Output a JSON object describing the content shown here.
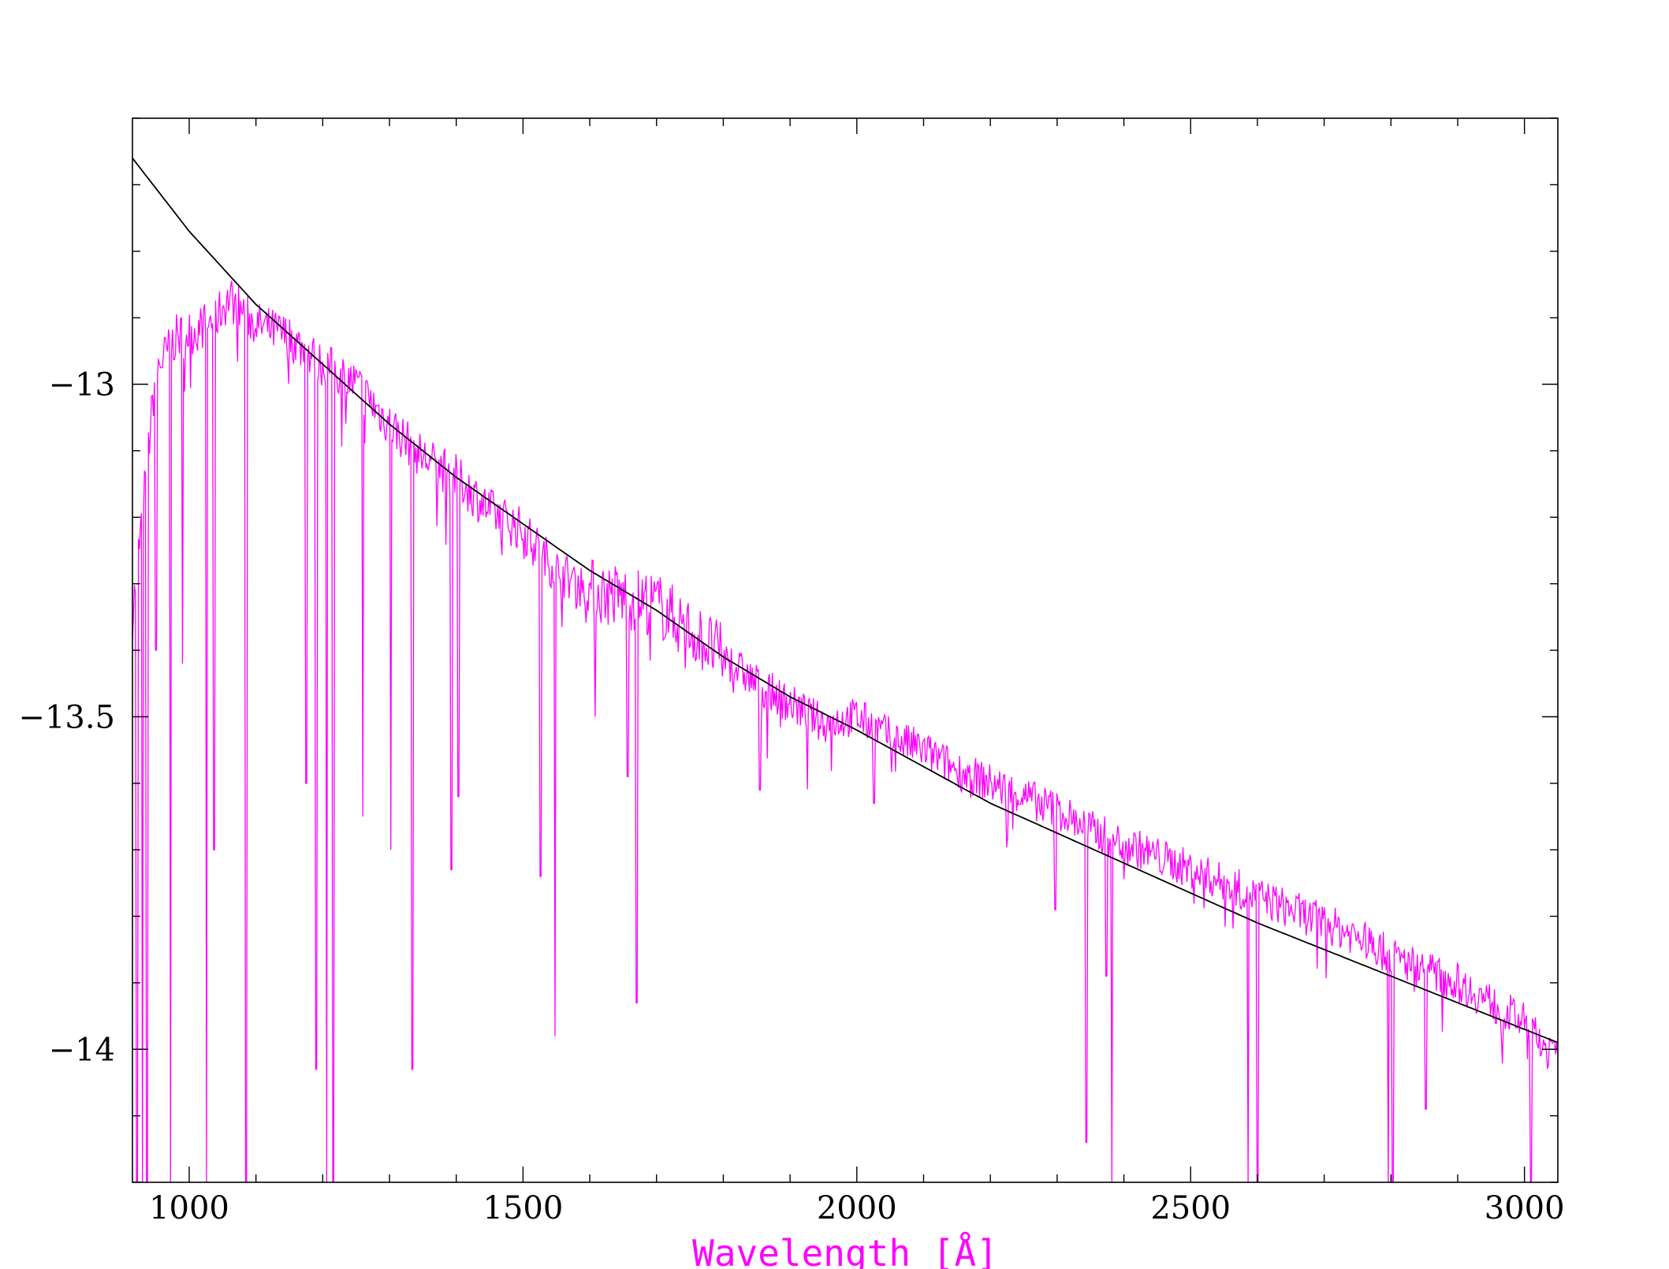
{
  "chart_data": {
    "type": "line",
    "title": "",
    "xlabel": "Wavelength [Å]",
    "ylabel": "",
    "xlim": [
      915,
      3050
    ],
    "ylim": [
      -14.2,
      -12.6
    ],
    "x_ticks": [
      1000,
      1500,
      2000,
      2500,
      3000
    ],
    "x_tick_labels": [
      "1000",
      "1500",
      "2000",
      "2500",
      "3000"
    ],
    "y_ticks": [
      -13,
      -13.5,
      -14
    ],
    "y_tick_labels": [
      "−13",
      "−13.5",
      "−14"
    ],
    "grid": false,
    "legend": "none",
    "colors": {
      "spectrum": "#ff00ff",
      "model": "#000000",
      "xlabel": "#ff00ff",
      "axes": "#000000"
    },
    "series": [
      {
        "role": "model continuum",
        "style": "smooth line",
        "x": [
          915,
          1000,
          1100,
          1200,
          1300,
          1400,
          1500,
          1600,
          1700,
          1800,
          1900,
          2000,
          2200,
          2400,
          2600,
          2800,
          3050
        ],
        "y": [
          -12.66,
          -12.77,
          -12.88,
          -12.97,
          -13.06,
          -13.14,
          -13.21,
          -13.28,
          -13.34,
          -13.41,
          -13.47,
          -13.52,
          -13.63,
          -13.72,
          -13.81,
          -13.89,
          -13.99
        ]
      },
      {
        "role": "observed spectrum",
        "style": "noisy line",
        "x": [
          915,
          950,
          980,
          1010,
          1040,
          1060,
          1100,
          1150,
          1200,
          1250,
          1300,
          1350,
          1400,
          1450,
          1500,
          1550,
          1600,
          1650,
          1700,
          1750,
          1800,
          1850,
          1900,
          1950,
          2000,
          2050,
          2100,
          2150,
          2200,
          2250,
          2300,
          2350,
          2400,
          2450,
          2500,
          2550,
          2600,
          2650,
          2700,
          2750,
          2800,
          2850,
          2900,
          2950,
          3000,
          3050
        ],
        "y": [
          -13.35,
          -12.98,
          -12.93,
          -12.92,
          -12.9,
          -12.87,
          -12.91,
          -12.93,
          -12.97,
          -13.0,
          -13.06,
          -13.11,
          -13.14,
          -13.19,
          -13.22,
          -13.28,
          -13.31,
          -13.32,
          -13.33,
          -13.37,
          -13.41,
          -13.45,
          -13.48,
          -13.51,
          -13.5,
          -13.53,
          -13.55,
          -13.58,
          -13.6,
          -13.62,
          -13.64,
          -13.67,
          -13.69,
          -13.71,
          -13.73,
          -13.75,
          -13.77,
          -13.79,
          -13.81,
          -13.83,
          -13.86,
          -13.88,
          -13.9,
          -13.93,
          -13.96,
          -14.02
        ]
      }
    ],
    "absorption_features": [
      {
        "x": 922,
        "depth_to": -14.2
      },
      {
        "x": 930,
        "depth_to": -14.2
      },
      {
        "x": 937,
        "depth_to": -14.2
      },
      {
        "x": 950,
        "depth_to": -13.4
      },
      {
        "x": 972,
        "depth_to": -14.2
      },
      {
        "x": 990,
        "depth_to": -13.42
      },
      {
        "x": 1026,
        "depth_to": -14.2
      },
      {
        "x": 1037,
        "depth_to": -13.7
      },
      {
        "x": 1085,
        "depth_to": -14.2
      },
      {
        "x": 1175,
        "depth_to": -13.6
      },
      {
        "x": 1190,
        "depth_to": -14.03
      },
      {
        "x": 1206,
        "depth_to": -14.2
      },
      {
        "x": 1216,
        "depth_to": -14.2
      },
      {
        "x": 1260,
        "depth_to": -13.65
      },
      {
        "x": 1302,
        "depth_to": -13.7
      },
      {
        "x": 1334,
        "depth_to": -14.03
      },
      {
        "x": 1393,
        "depth_to": -13.73
      },
      {
        "x": 1403,
        "depth_to": -13.62
      },
      {
        "x": 1526,
        "depth_to": -13.74
      },
      {
        "x": 1548,
        "depth_to": -13.98
      },
      {
        "x": 1608,
        "depth_to": -13.5
      },
      {
        "x": 1657,
        "depth_to": -13.59
      },
      {
        "x": 1670,
        "depth_to": -13.93
      },
      {
        "x": 1855,
        "depth_to": -13.61
      },
      {
        "x": 2026,
        "depth_to": -13.63
      },
      {
        "x": 2297,
        "depth_to": -13.79
      },
      {
        "x": 2344,
        "depth_to": -14.14
      },
      {
        "x": 2374,
        "depth_to": -13.89
      },
      {
        "x": 2382,
        "depth_to": -14.2
      },
      {
        "x": 2586,
        "depth_to": -14.2
      },
      {
        "x": 2600,
        "depth_to": -14.2
      },
      {
        "x": 2796,
        "depth_to": -14.2
      },
      {
        "x": 2803,
        "depth_to": -14.2
      },
      {
        "x": 2852,
        "depth_to": -14.09
      },
      {
        "x": 3010,
        "depth_to": -14.2
      }
    ]
  }
}
